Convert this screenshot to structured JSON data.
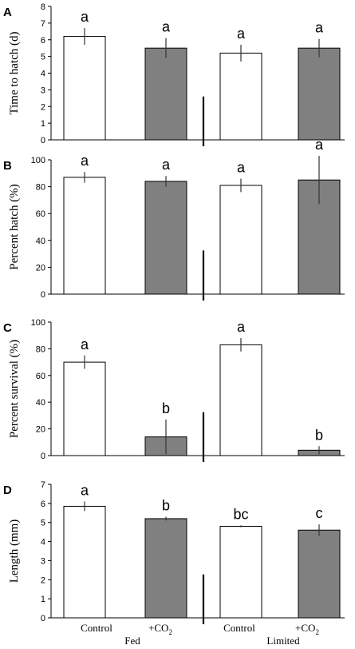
{
  "chart_data": [
    {
      "type": "bar",
      "panel": "A",
      "ylabel": "Time to hatch (d)",
      "ylim": [
        0,
        8
      ],
      "yticks": [
        0,
        1,
        2,
        3,
        4,
        5,
        6,
        7,
        8
      ],
      "categories": [
        "Control",
        "+CO2",
        "Control",
        "+CO2"
      ],
      "values": [
        6.2,
        5.5,
        5.2,
        5.5
      ],
      "errors": [
        0.5,
        0.6,
        0.5,
        0.55
      ],
      "fills": [
        "#ffffff",
        "#808080",
        "#ffffff",
        "#808080"
      ],
      "significance": [
        "a",
        "a",
        "a",
        "a"
      ]
    },
    {
      "type": "bar",
      "panel": "B",
      "ylabel": "Percent hatch (%)",
      "ylim": [
        0,
        100
      ],
      "yticks": [
        0,
        20,
        40,
        60,
        80,
        100
      ],
      "categories": [
        "Control",
        "+CO2",
        "Control",
        "+CO2"
      ],
      "values": [
        87,
        84,
        81,
        85
      ],
      "errors": [
        4,
        4,
        5,
        18
      ],
      "fills": [
        "#ffffff",
        "#808080",
        "#ffffff",
        "#808080"
      ],
      "significance": [
        "a",
        "a",
        "a",
        "a"
      ]
    },
    {
      "type": "bar",
      "panel": "C",
      "ylabel": "Percent survival (%)",
      "ylim": [
        0,
        100
      ],
      "yticks": [
        0,
        20,
        40,
        60,
        80,
        100
      ],
      "categories": [
        "Control",
        "+CO2",
        "Control",
        "+CO2"
      ],
      "values": [
        70,
        14,
        83,
        4
      ],
      "errors": [
        5,
        13,
        5,
        3
      ],
      "fills": [
        "#ffffff",
        "#808080",
        "#ffffff",
        "#808080"
      ],
      "significance": [
        "a",
        "b",
        "a",
        "b"
      ]
    },
    {
      "type": "bar",
      "panel": "D",
      "ylabel": "Length (mm)",
      "ylim": [
        0,
        7
      ],
      "yticks": [
        0,
        1,
        2,
        3,
        4,
        5,
        6,
        7
      ],
      "categories": [
        "Control",
        "+CO2",
        "Control",
        "+CO2"
      ],
      "values": [
        5.85,
        5.2,
        4.8,
        4.6
      ],
      "errors": [
        0.25,
        0.1,
        0.05,
        0.3
      ],
      "fills": [
        "#ffffff",
        "#808080",
        "#ffffff",
        "#808080"
      ],
      "significance": [
        "a",
        "b",
        "bc",
        "c"
      ]
    }
  ],
  "x_axis": {
    "control_label": "Control",
    "co2_label_main": "+CO",
    "co2_label_sub": "2",
    "groups": [
      "Fed",
      "Limited"
    ]
  }
}
